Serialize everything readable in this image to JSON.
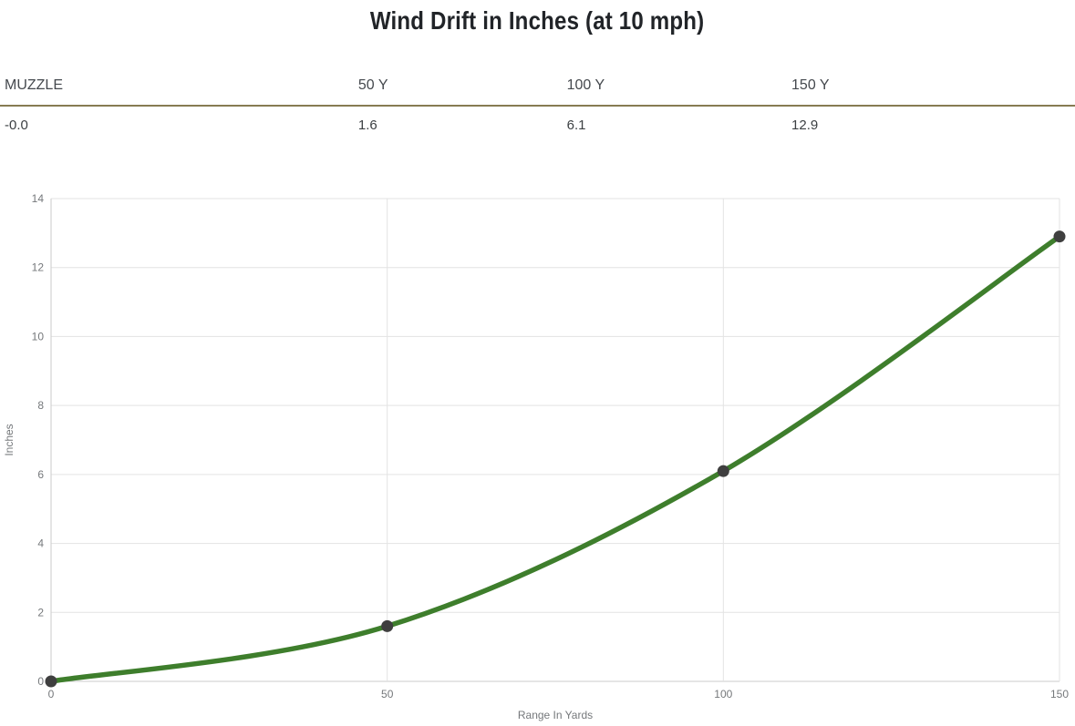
{
  "page": {
    "title": "Wind Drift in Inches (at 10 mph)"
  },
  "table": {
    "columns": [
      {
        "label": "MUZZLE",
        "value": "-0.0"
      },
      {
        "label": "50 Y",
        "value": "1.6"
      },
      {
        "label": "100 Y",
        "value": "6.1"
      },
      {
        "label": "150 Y",
        "value": "12.9"
      }
    ]
  },
  "chart_data": {
    "type": "line",
    "title": "Wind Drift in Inches (at 10 mph)",
    "x": [
      0,
      50,
      100,
      150
    ],
    "series": [
      {
        "name": "Wind Drift",
        "values": [
          0,
          1.6,
          6.1,
          12.9
        ]
      }
    ],
    "xlabel": "Range In Yards",
    "ylabel": "Inches",
    "xlim": [
      0,
      150
    ],
    "ylim": [
      0,
      14
    ],
    "xticks": [
      0,
      50,
      100,
      150
    ],
    "yticks": [
      0,
      2,
      4,
      6,
      8,
      10,
      12,
      14
    ],
    "grid": true,
    "legend_position": "none",
    "colors": {
      "line": "#3E7E2C",
      "marker": "#3F3F3F",
      "grid": "#E3E3E3",
      "axis": "#CBCBCB",
      "tick_text": "#75787B",
      "separator": "#867C52",
      "title_text": "#212428"
    }
  }
}
